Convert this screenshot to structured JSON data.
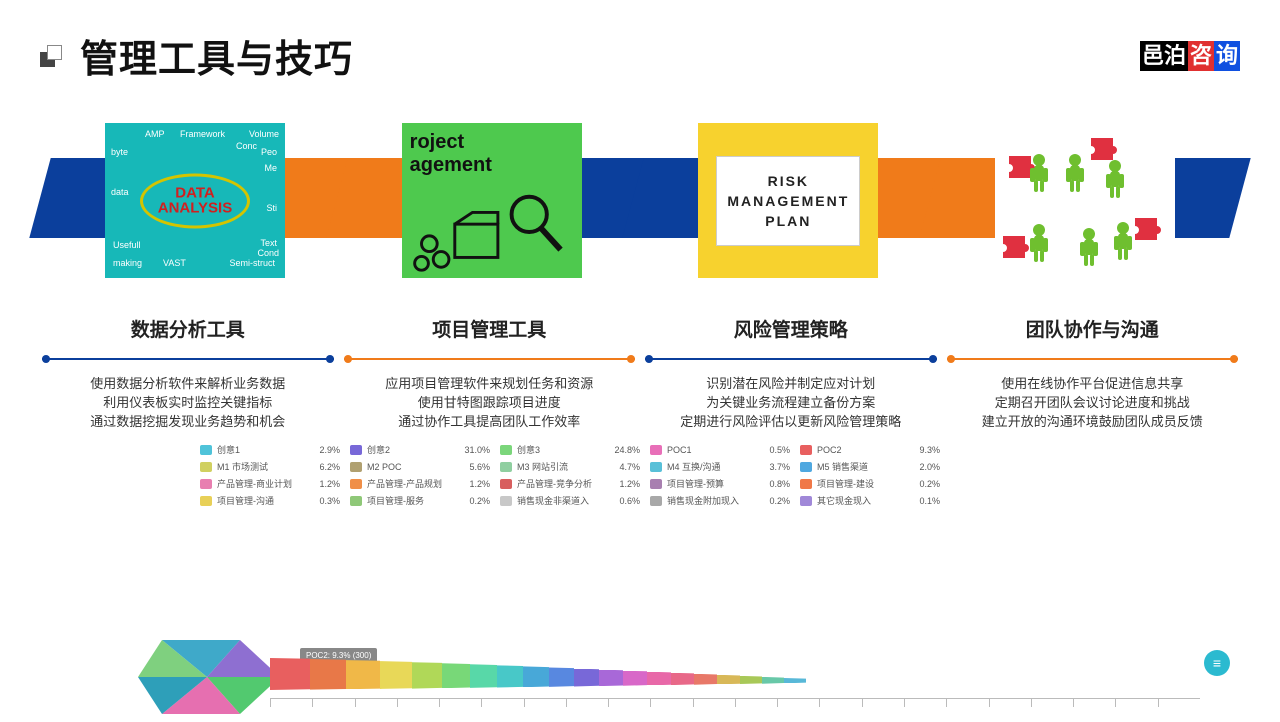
{
  "title": "管理工具与技巧",
  "logo": [
    "邑泊",
    "咨",
    "询"
  ],
  "accent": {
    "blue": "#0b3f9c",
    "orange": "#f07b1a"
  },
  "cards": [
    {
      "leftColor": "#0b3f9c",
      "rightColor": "#f07b1a",
      "label": "DATA ANALYSIS",
      "bg": "#17b8b8",
      "words": [
        "AMP",
        "Framework",
        "Volume",
        "byte",
        "data",
        "VAST",
        "Usefull",
        "making",
        "Semi-struct",
        "Peo",
        "Me",
        "Sti",
        "Conc",
        "Text",
        "Cond"
      ]
    },
    {
      "leftColor": "#f07b1a",
      "rightColor": "#0b3f9c",
      "label": "roject agement",
      "bg": "#4ec94e"
    },
    {
      "leftColor": "#0b3f9c",
      "rightColor": "#f07b1a",
      "label": "RISK MANAGEMENT PLAN",
      "bg": "#f7d22e"
    },
    {
      "leftColor": "#f07b1a",
      "rightColor": "#0b3f9c",
      "label": "TEAM",
      "bg": "#ffffff"
    }
  ],
  "columns": [
    {
      "title": "数据分析工具",
      "color": "#0b3f9c",
      "lines": [
        "使用数据分析软件来解析业务数据",
        "利用仪表板实时监控关键指标",
        "通过数据挖掘发现业务趋势和机会"
      ]
    },
    {
      "title": "项目管理工具",
      "color": "#f07b1a",
      "lines": [
        "应用项目管理软件来规划任务和资源",
        "使用甘特图跟踪项目进度",
        "通过协作工具提高团队工作效率"
      ]
    },
    {
      "title": "风险管理策略",
      "color": "#0b3f9c",
      "lines": [
        "识别潜在风险并制定应对计划",
        "为关键业务流程建立备份方案",
        "定期进行风险评估以更新风险管理策略"
      ]
    },
    {
      "title": "团队协作与沟通",
      "color": "#f07b1a",
      "lines": [
        "使用在线协作平台促进信息共享",
        "定期召开团队会议讨论进度和挑战",
        "建立开放的沟通环境鼓励团队成员反馈"
      ]
    }
  ],
  "legend": [
    {
      "label": "创意1",
      "pct": "2.9%",
      "c": "#4fc3d9"
    },
    {
      "label": "创意2",
      "pct": "31.0%",
      "c": "#7868d8"
    },
    {
      "label": "创意3",
      "pct": "24.8%",
      "c": "#7bd67b"
    },
    {
      "label": "POC1",
      "pct": "0.5%",
      "c": "#e86fb8"
    },
    {
      "label": "POC2",
      "pct": "9.3%",
      "c": "#e85f5f"
    },
    {
      "label": "M1 市场测试",
      "pct": "6.2%",
      "c": "#d0d060"
    },
    {
      "label": "M2 POC",
      "pct": "5.6%",
      "c": "#b0a070"
    },
    {
      "label": "M3 网站引流",
      "pct": "4.7%",
      "c": "#8fcfa0"
    },
    {
      "label": "M4 互换/沟通",
      "pct": "3.7%",
      "c": "#58c0d8"
    },
    {
      "label": "M5 销售渠道",
      "pct": "2.0%",
      "c": "#4fa8e0"
    },
    {
      "label": "产品管理-商业计划",
      "pct": "1.2%",
      "c": "#e87fb0"
    },
    {
      "label": "产品管理-产品规划",
      "pct": "1.2%",
      "c": "#f08f48"
    },
    {
      "label": "产品管理-竞争分析",
      "pct": "1.2%",
      "c": "#d85f5f"
    },
    {
      "label": "项目管理-预算",
      "pct": "0.8%",
      "c": "#a87fb0"
    },
    {
      "label": "项目管理-建设",
      "pct": "0.2%",
      "c": "#f07848"
    },
    {
      "label": "项目管理-沟通",
      "pct": "0.3%",
      "c": "#e8d058"
    },
    {
      "label": "项目管理-服务",
      "pct": "0.2%",
      "c": "#8fc878"
    },
    {
      "label": "销售现金非渠道入",
      "pct": "0.6%",
      "c": "#c8c8c8"
    },
    {
      "label": "销售现金附加现入",
      "pct": "0.2%",
      "c": "#a8a8a8"
    },
    {
      "label": "其它现金现入",
      "pct": "0.1%",
      "c": "#a088d8"
    }
  ],
  "hexColors": [
    "#3fa9c9",
    "#8e6fd1",
    "#52c96f",
    "#e66fb0",
    "#2e9fb9",
    "#7fd07f"
  ],
  "funnelTag": "POC2: 9.3% (300)",
  "funnel": [
    {
      "c": "#e85f5f",
      "w": 40
    },
    {
      "c": "#e87848",
      "w": 36
    },
    {
      "c": "#f0b848",
      "w": 34
    },
    {
      "c": "#e8d858",
      "w": 32
    },
    {
      "c": "#b0d858",
      "w": 30
    },
    {
      "c": "#78d878",
      "w": 28
    },
    {
      "c": "#58d8a8",
      "w": 27
    },
    {
      "c": "#48c8c8",
      "w": 26
    },
    {
      "c": "#48a8d8",
      "w": 26
    },
    {
      "c": "#5888e0",
      "w": 25
    },
    {
      "c": "#7868d8",
      "w": 25
    },
    {
      "c": "#a868d8",
      "w": 24
    },
    {
      "c": "#d868c8",
      "w": 24
    },
    {
      "c": "#e868a8",
      "w": 24
    },
    {
      "c": "#e86888",
      "w": 23
    },
    {
      "c": "#e87868",
      "w": 23
    },
    {
      "c": "#d8b858",
      "w": 23
    },
    {
      "c": "#a8c858",
      "w": 22
    },
    {
      "c": "#68c8a8",
      "w": 22
    },
    {
      "c": "#58b8d8",
      "w": 22
    }
  ]
}
